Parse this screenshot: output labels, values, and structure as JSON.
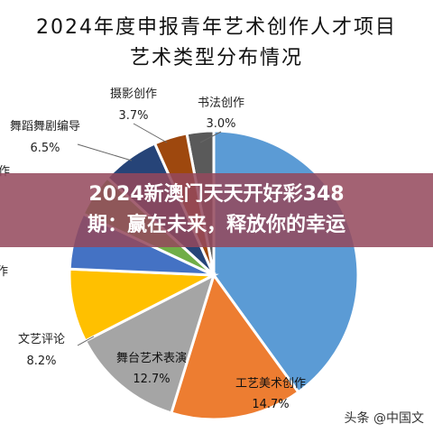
{
  "chart_data": {
    "type": "pie",
    "title": "2024年度申报青年艺术创作人才项目",
    "subtitle": "艺术类型分布情况",
    "slices": [
      {
        "label": "书法创作",
        "value_text": "3.0%",
        "value": 3.0,
        "color": "#5a5a5a"
      },
      {
        "label": "美术创作",
        "value_text": "",
        "value": 40.0,
        "color": "#5b9bd5"
      },
      {
        "label": "工艺美术创作",
        "value_text": "14.7%",
        "value": 14.7,
        "color": "#ed7d31"
      },
      {
        "label": "舞台艺术表演",
        "value_text": "12.7%",
        "value": 12.7,
        "color": "#a5a5a5"
      },
      {
        "label": "文艺评论",
        "value_text": "8.2%",
        "value": 8.2,
        "color": "#ffc000"
      },
      {
        "label": "",
        "value_text": "",
        "value": 6.3,
        "color": "#4472c4"
      },
      {
        "label": "",
        "value_text": "",
        "value": 4.8,
        "color": "#70ad47"
      },
      {
        "label": "舞蹈舞剧编导",
        "value_text": "6.5%",
        "value": 6.5,
        "color": "#264478"
      },
      {
        "label": "摄影创作",
        "value_text": "3.7%",
        "value": 3.7,
        "color": "#9e480e"
      }
    ]
  },
  "overlay": {
    "line1": "2024新澳门天天开好彩348",
    "line2": "期：赢在未来，释放你的幸运"
  },
  "watermark": "头条 @中国文"
}
